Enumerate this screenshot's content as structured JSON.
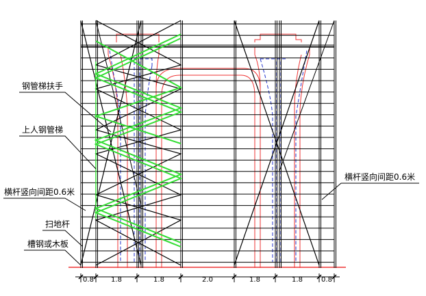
{
  "labels": {
    "handrail": "钢管梯扶手",
    "ladder": "上人钢管梯",
    "ledger_spacing_left": "横杆竖向间距0.6米",
    "ledger_spacing_right": "横杆竖向间距0.6米",
    "sweep_rod": "扫地杆",
    "base_board": "槽钢或木板"
  },
  "dimensions": [
    "0.8",
    "1.8",
    "1.8",
    "2.0",
    "1.8",
    "1.8",
    "0.8"
  ],
  "colors": {
    "frame": "#000000",
    "ladder": "#33dd33",
    "pier_outline": "#ee3333",
    "hidden_lines": "#2233cc",
    "ground": "#ee3333"
  }
}
